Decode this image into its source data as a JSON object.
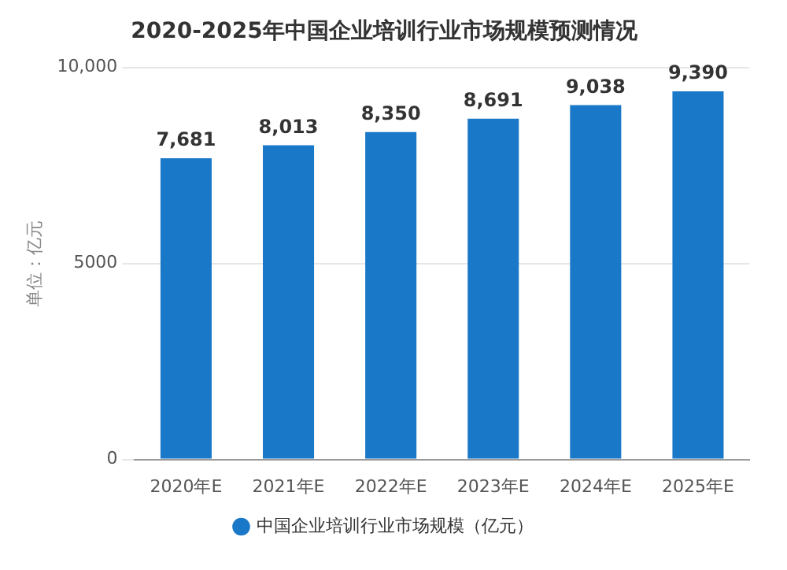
{
  "chart_data": {
    "type": "bar",
    "title": "2020-2025年中国企业培训行业市场规模预测情况",
    "ylabel": "单位：亿元",
    "categories": [
      "2020年E",
      "2021年E",
      "2022年E",
      "2023年E",
      "2024年E",
      "2025年E"
    ],
    "series": [
      {
        "name": "中国企业培训行业市场规模（亿元）",
        "color": "#1a78c8",
        "values": [
          7681,
          8013,
          8350,
          8691,
          9038,
          9390
        ],
        "value_labels": [
          "7,681",
          "8,013",
          "8,350",
          "8,691",
          "9,038",
          "9,390"
        ]
      }
    ],
    "ylim": [
      0,
      10000
    ],
    "yticks": [
      0,
      5000,
      {
        "value": 10000,
        "label": "10,000"
      }
    ],
    "grid": "y",
    "legend": "bottom"
  }
}
